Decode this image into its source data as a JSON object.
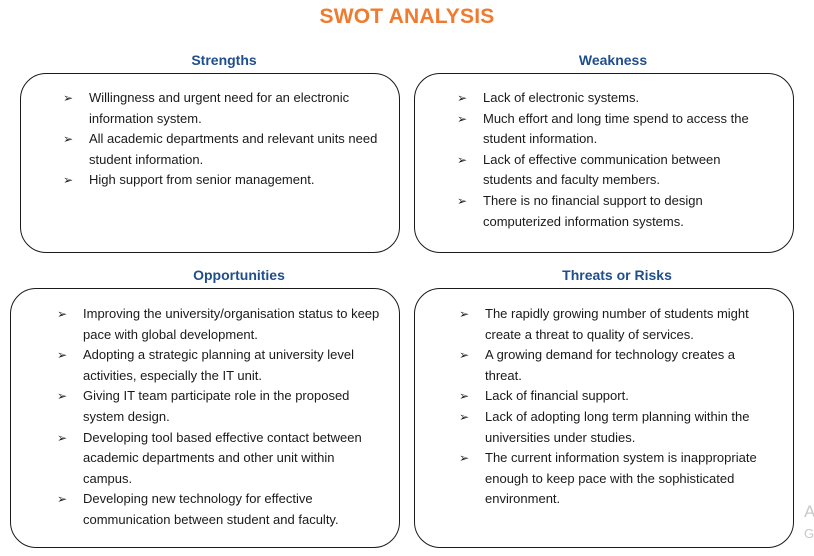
{
  "title": "SWOT ANALYSIS",
  "bullet_glyph": "➢",
  "quadrants": [
    {
      "heading": "Strengths",
      "items": [
        "Willingness and urgent need for an electronic information system.",
        "All academic departments and relevant units need student information.",
        "High support from senior management."
      ]
    },
    {
      "heading": "Weakness",
      "items": [
        "Lack of electronic systems.",
        "Much effort and long time spend to access the student information.",
        "Lack of effective communication between students and faculty members.",
        "There is no financial support to design computerized information systems."
      ]
    },
    {
      "heading": "Opportunities",
      "items": [
        "Improving the university/organisation status to keep pace with global development.",
        "Adopting a strategic planning at university level activities, especially the IT unit.",
        "Giving IT team participate role in the proposed system design.",
        "Developing tool based effective contact between academic departments and other unit within campus.",
        "Developing new technology for effective communication between student and faculty."
      ]
    },
    {
      "heading": "Threats or Risks",
      "items": [
        "The rapidly growing number of students might create a threat to quality of services.",
        "A growing demand for technology creates a threat.",
        "Lack of financial support.",
        "Lack of adopting long term planning within the universities under studies.",
        "The current information system is inappropriate enough to keep pace with the sophisticated environment."
      ]
    }
  ],
  "watermark": [
    "A",
    "G"
  ],
  "colors": {
    "title": "#f07a2e",
    "heading": "#1f4e8c",
    "border": "#1a1a1a"
  }
}
